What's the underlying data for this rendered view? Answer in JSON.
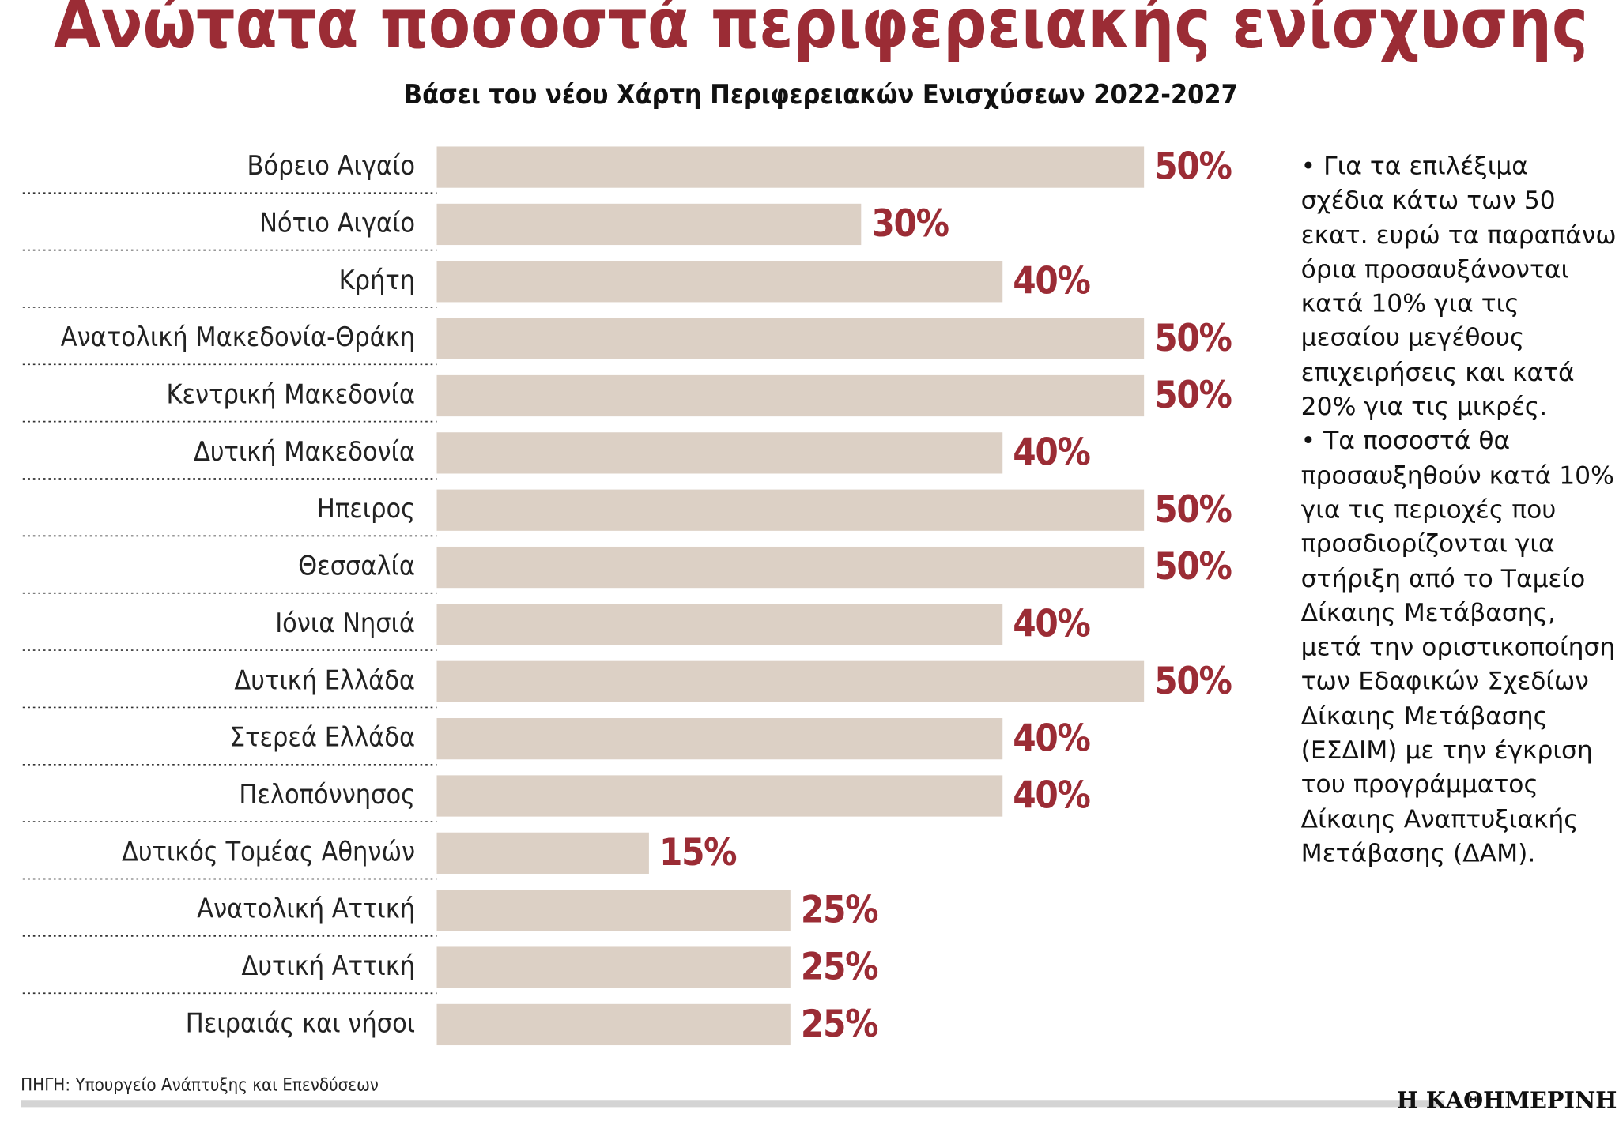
{
  "chart_data": {
    "type": "bar",
    "orientation": "horizontal",
    "title": "Ανώτατα ποσοστά περιφερειακής ενίσχυσης",
    "subtitle": "Βάσει του νέου Χάρτη Περιφερειακών Ενισχύσεων 2022-2027",
    "categories": [
      "Βόρειο Αιγαίο",
      "Νότιο Αιγαίο",
      "Κρήτη",
      "Ανατολική Μακεδονία-Θράκη",
      "Κεντρική Μακεδονία",
      "Δυτική Μακεδονία",
      "Ηπειρος",
      "Θεσσαλία",
      "Ιόνια Νησιά",
      "Δυτική Ελλάδα",
      "Στερεά Ελλάδα",
      "Πελοπόννησος",
      "Δυτικός Τομέας Αθηνών",
      "Ανατολική Αττική",
      "Δυτική Αττική",
      "Πειραιάς και νήσοι"
    ],
    "values": [
      50,
      30,
      40,
      50,
      50,
      40,
      50,
      50,
      40,
      50,
      40,
      40,
      15,
      25,
      25,
      25
    ],
    "value_labels": [
      "50%",
      "30%",
      "40%",
      "50%",
      "50%",
      "40%",
      "50%",
      "50%",
      "40%",
      "50%",
      "40%",
      "40%",
      "15%",
      "25%",
      "25%",
      "25%"
    ],
    "color": "#dcd0c5",
    "label_color": "#9b2c35",
    "notes": [
      "• Για τα επιλέξιμα σχέδια κάτω των 50 εκατ. ευρώ τα παραπάνω όρια προσαυξάνονται κατά 10% για τις μεσαίου μεγέθους επιχειρήσεις και κατά 20% για τις μικρές.",
      "• Τα ποσοστά θα προσαυξηθούν κατά 10% για τις περιοχές που προσδιορίζονται για στήριξη από το Ταμείο Δίκαιης Μετάβασης, μετά την οριστικοποίηση των Εδαφικών Σχεδίων Δίκαιης Μετάβασης (ΕΣΔΙΜ) με την έγκριση του προγράμματος Δίκαιης Αναπτυξιακής Μετάβασης (ΔΑΜ)."
    ],
    "source": "ΠΗΓΗ: Υπουργείο Ανάπτυξης και Επενδύσεων",
    "publisher": "Η ΚΑΘΗΜΕΡΙΝΗ"
  }
}
